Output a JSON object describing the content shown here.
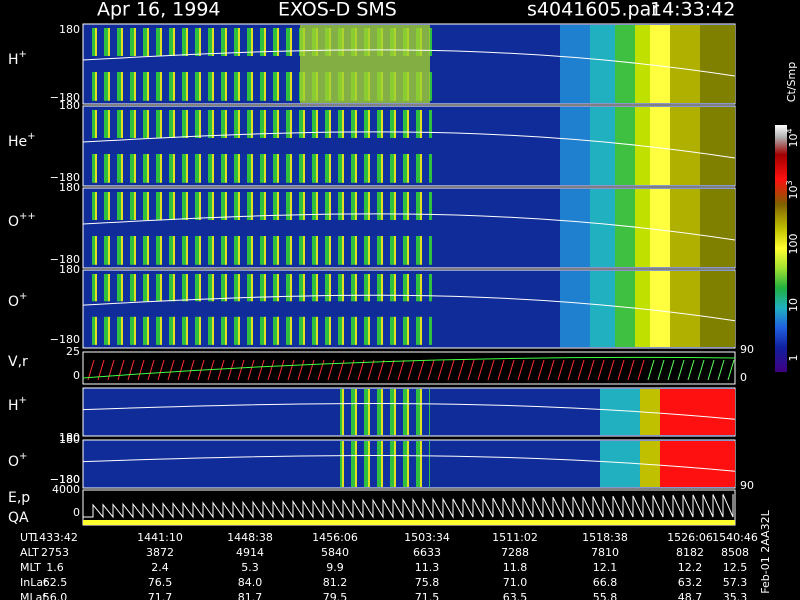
{
  "header": {
    "date": "Apr 16, 1994",
    "instrument": "EXOS-D SMS",
    "file": "s4041605.par",
    "time": "14:33:42"
  },
  "panels": [
    {
      "label": "H",
      "superscript": "+",
      "ticks": [
        "180",
        "−180"
      ]
    },
    {
      "label": "He",
      "superscript": "+",
      "ticks": [
        "180",
        "−180"
      ]
    },
    {
      "label": "O",
      "superscript": "++",
      "ticks": [
        "180",
        "−180"
      ]
    },
    {
      "label": "O",
      "superscript": "+",
      "ticks": [
        "180",
        "−180"
      ]
    },
    {
      "label": "V,r",
      "ticks": [
        "25",
        "0"
      ],
      "right_ticks": [
        "90",
        "0"
      ]
    },
    {
      "label": "H",
      "superscript": "+",
      "ticks": [
        "180",
        "−180"
      ]
    },
    {
      "label": "O",
      "superscript": "+",
      "ticks": [
        "180",
        "−180"
      ],
      "right_ticks": [
        "90"
      ]
    },
    {
      "label": "E,p",
      "label2": "QA",
      "ticks": [
        "4000",
        "0"
      ]
    }
  ],
  "colorbar": {
    "unit": "Ct/Smp",
    "labels": [
      {
        "text": "10",
        "superscript": "4"
      },
      {
        "text": "10",
        "superscript": "3"
      },
      {
        "text": "100"
      },
      {
        "text": "10"
      },
      {
        "text": "1"
      }
    ]
  },
  "ephemeris": [
    {
      "label": "UT",
      "values": [
        "1433:42",
        "1441:10",
        "1448:38",
        "1456:06",
        "1503:34",
        "1511:02",
        "1518:38",
        "1526:06",
        "1540:46"
      ]
    },
    {
      "label": "ALT",
      "values": [
        "2753",
        "3872",
        "4914",
        "5840",
        "6633",
        "7288",
        "7810",
        "8182",
        "8508"
      ]
    },
    {
      "label": "MLT",
      "values": [
        "1.6",
        "2.4",
        "5.3",
        "9.9",
        "11.3",
        "11.8",
        "12.1",
        "12.2",
        "12.5"
      ]
    },
    {
      "label": "InLat",
      "values": [
        "62.5",
        "76.5",
        "84.0",
        "81.2",
        "75.8",
        "71.0",
        "66.8",
        "63.2",
        "57.3"
      ]
    },
    {
      "label": "MLat",
      "values": [
        "56.0",
        "71.7",
        "81.7",
        "79.5",
        "71.5",
        "63.5",
        "55.8",
        "48.7",
        "35.3"
      ]
    }
  ],
  "footer": "Feb-01 2AA32L"
}
